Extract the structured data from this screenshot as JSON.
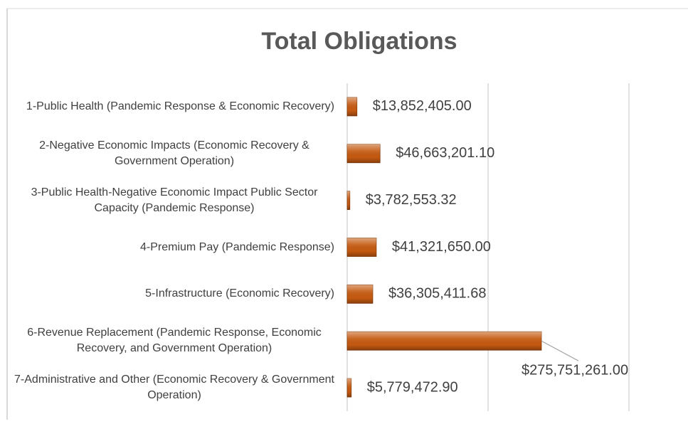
{
  "chart_data": {
    "type": "hbar",
    "title": "Total Obligations",
    "categories": [
      "1-Public Health (Pandemic Response & Economic Recovery)",
      "2-Negative Economic Impacts (Economic Recovery & Government Operation)",
      "3-Public Health-Negative Economic Impact Public Sector Capacity (Pandemic Response)",
      "4-Premium Pay (Pandemic Response)",
      "5-Infrastructure (Economic Recovery)",
      "6-Revenue Replacement (Pandemic Response, Economic Recovery, and Government Operation)",
      "7-Administrative and Other (Economic Recovery & Government Operation)"
    ],
    "values": [
      13852405,
      46663201.1,
      3782553.32,
      41321650,
      36305411.68,
      275751261,
      5779472.9
    ],
    "value_labels": [
      "$13,852,405.00",
      "$46,663,201.10",
      "$3,782,553.32",
      "$41,321,650.00",
      "$36,305,411.68",
      "$275,751,261.00",
      "$5,779,472.90"
    ],
    "color": "#c55a11",
    "xlim": [
      0,
      400000000
    ],
    "xticks": [
      0,
      200000000,
      400000000
    ],
    "grid": true
  }
}
